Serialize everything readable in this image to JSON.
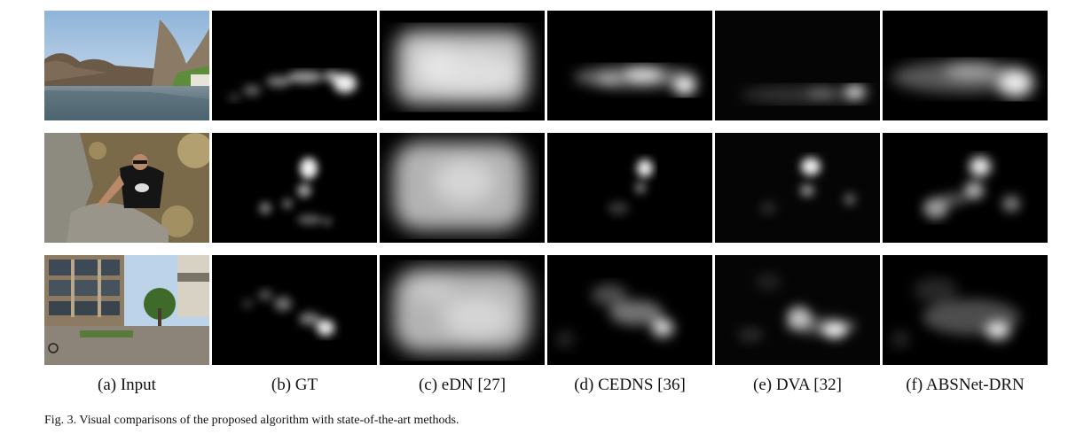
{
  "figure": {
    "column_labels": [
      "(a) Input",
      "(b) GT",
      "(c) eDN [27]",
      "(d) CEDNS [36]",
      "(e) DVA [32]",
      "(f) ABSNet-DRN"
    ],
    "caption": "Fig. 3.  Visual comparisons of the proposed algorithm with state-of-the-art methods.",
    "rows": [
      {
        "input_scene": "river-landscape-photo"
      },
      {
        "input_scene": "man-climbing-rock-photo"
      },
      {
        "input_scene": "campus-buildings-photo"
      }
    ]
  }
}
